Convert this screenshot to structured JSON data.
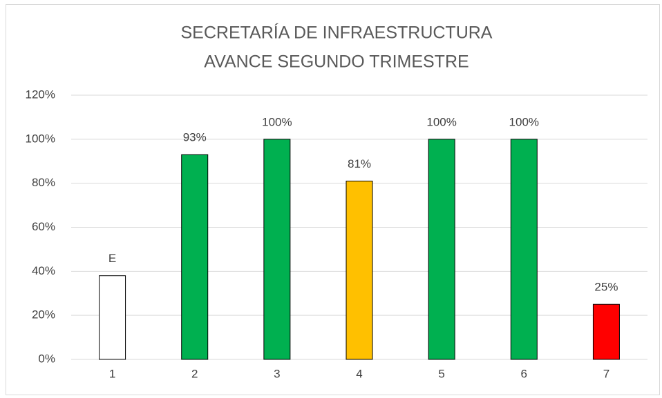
{
  "chart_data": {
    "type": "bar",
    "title": [
      "SECRETARÍA DE INFRAESTRUCTURA",
      "AVANCE SEGUNDO TRIMESTRE"
    ],
    "categories": [
      "1",
      "2",
      "3",
      "4",
      "5",
      "6",
      "7"
    ],
    "values": [
      38,
      93,
      100,
      81,
      100,
      100,
      25
    ],
    "value_labels": [
      "E",
      "93%",
      "100%",
      "81%",
      "100%",
      "100%",
      "25%"
    ],
    "colors": [
      "#ffffff",
      "#00b050",
      "#00b050",
      "#ffc000",
      "#00b050",
      "#00b050",
      "#ff0000"
    ],
    "ylim": [
      0,
      120
    ],
    "yticks": [
      {
        "value": 0,
        "label": "0%"
      },
      {
        "value": 20,
        "label": "20%"
      },
      {
        "value": 40,
        "label": "40%"
      },
      {
        "value": 60,
        "label": "60%"
      },
      {
        "value": 80,
        "label": "80%"
      },
      {
        "value": 100,
        "label": "100%"
      },
      {
        "value": 120,
        "label": "120%"
      }
    ],
    "grid": true
  }
}
